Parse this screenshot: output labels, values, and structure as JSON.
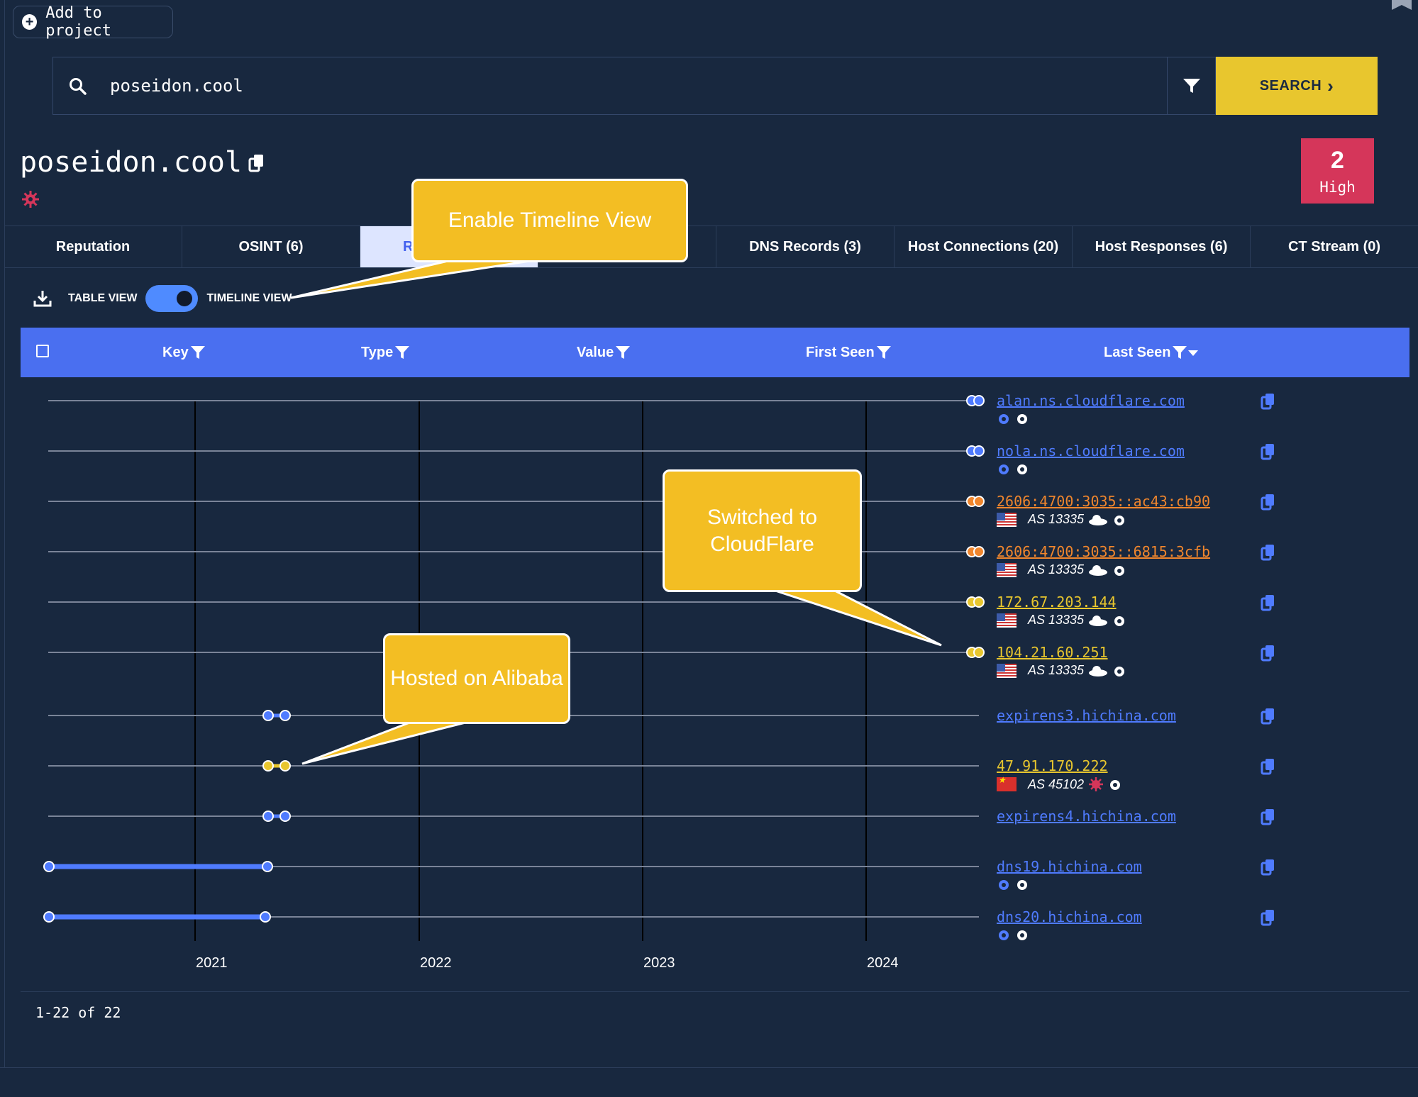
{
  "header": {
    "add_to_project": "Add to project"
  },
  "search": {
    "value": "poseidon.cool",
    "button": "SEARCH"
  },
  "domain": {
    "title": "poseidon.cool"
  },
  "risk": {
    "count": "2",
    "label": "High"
  },
  "tabs": [
    {
      "label": "Reputation"
    },
    {
      "label": "OSINT (6)"
    },
    {
      "label": "Re",
      "active": true
    },
    {
      "label": ""
    },
    {
      "label": "DNS Records (3)"
    },
    {
      "label": "Host Connections (20)"
    },
    {
      "label": "Host Responses (6)"
    },
    {
      "label": "CT Stream (0)"
    }
  ],
  "view": {
    "table_label": "TABLE VIEW",
    "timeline_label": "TIMELINE VIEW"
  },
  "columns": {
    "key": "Key",
    "type": "Type",
    "value": "Value",
    "first_seen": "First Seen",
    "last_seen": "Last Seen"
  },
  "rows": [
    {
      "value": "alan.ns.cloudflare.com",
      "color": "#4f7bff"
    },
    {
      "value": "nola.ns.cloudflare.com",
      "color": "#4f7bff"
    },
    {
      "value": "2606:4700:3035::ac43:cb90",
      "color": "#f0862d",
      "asn": "AS 13335"
    },
    {
      "value": "2606:4700:3035::6815:3cfb",
      "color": "#f0862d",
      "asn": "AS 13335"
    },
    {
      "value": "172.67.203.144",
      "color": "#e8c62e",
      "asn": "AS 13335"
    },
    {
      "value": "104.21.60.251",
      "color": "#e8c62e",
      "asn": "AS 13335"
    },
    {
      "value": "expirens3.hichina.com",
      "color": "#4f7bff"
    },
    {
      "value": "47.91.170.222",
      "color": "#e8c62e",
      "asn": "AS 45102"
    },
    {
      "value": "expirens4.hichina.com",
      "color": "#4f7bff"
    },
    {
      "value": "dns19.hichina.com",
      "color": "#4f7bff"
    },
    {
      "value": "dns20.hichina.com",
      "color": "#4f7bff"
    }
  ],
  "axis": {
    "years": [
      "2021",
      "2022",
      "2023",
      "2024"
    ]
  },
  "callouts": {
    "timeline": "Enable Timeline View",
    "cloudflare": "Switched to CloudFlare",
    "alibaba": "Hosted on Alibaba"
  },
  "footer": {
    "pagination": "1-22 of 22"
  }
}
